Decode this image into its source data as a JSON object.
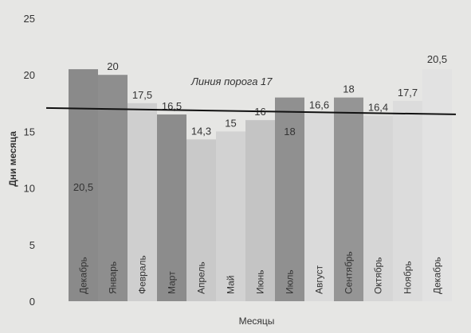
{
  "chart_data": {
    "type": "bar",
    "xlabel": "Месяцы",
    "ylabel": "Дни месяца",
    "ylim": [
      0,
      25
    ],
    "yticks": [
      "0",
      "5",
      "10",
      "15",
      "20",
      "25"
    ],
    "categories": [
      "Декабрь",
      "Январь",
      "Февраль",
      "Март",
      "Апрель",
      "Май",
      "Июнь",
      "Июль",
      "Август",
      "Сентябрь",
      "Октябрь",
      "Ноябрь",
      "Декабрь"
    ],
    "values": [
      20.5,
      20,
      17.5,
      16.5,
      14.3,
      15,
      16,
      18,
      16.6,
      18,
      16.4,
      17.7,
      20.5
    ],
    "value_labels": [
      "20,5",
      "20",
      "17,5",
      "16,5",
      "14,3",
      "15",
      "16",
      "18",
      "16,6",
      "18",
      "16,4",
      "17,7",
      "20,5"
    ],
    "bar_colors": [
      "#8a8a8a",
      "#8e8e8e",
      "#cfcfcf",
      "#8c8c8c",
      "#c9c9c9",
      "#d2d2d2",
      "#c4c4c4",
      "#909090",
      "#dadada",
      "#959595",
      "#d6d6d6",
      "#dcdcdc",
      "#e2e2e2"
    ],
    "threshold": {
      "value": 17,
      "label": "Линия порога 17",
      "color": "#111111"
    },
    "grid": false,
    "legend": "none"
  }
}
